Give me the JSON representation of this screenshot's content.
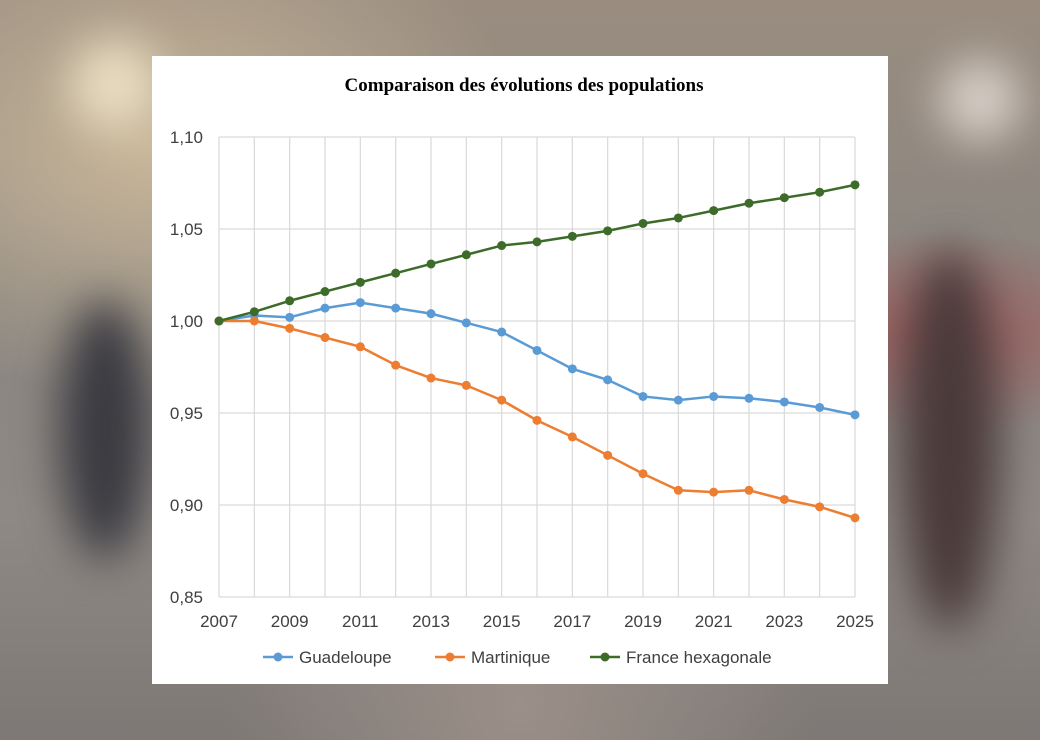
{
  "chart_data": {
    "type": "line",
    "title": "Comparaison des évolutions des populations",
    "xlabel": "",
    "ylabel": "",
    "x": [
      2007,
      2008,
      2009,
      2010,
      2011,
      2012,
      2013,
      2014,
      2015,
      2016,
      2017,
      2018,
      2019,
      2020,
      2021,
      2022,
      2023,
      2024,
      2025
    ],
    "xticks": [
      "2007",
      "2009",
      "2011",
      "2013",
      "2015",
      "2017",
      "2019",
      "2021",
      "2023",
      "2025"
    ],
    "yticks": [
      "1,10",
      "1,05",
      "1,00",
      "0,95",
      "0,90",
      "0,85"
    ],
    "ylim": [
      0.85,
      1.1
    ],
    "xlim": [
      2007,
      2025
    ],
    "grid": true,
    "legend_position": "bottom",
    "series": [
      {
        "name": "Guadeloupe",
        "color": "#5b9bd5",
        "values": [
          1.0,
          1.003,
          1.002,
          1.007,
          1.01,
          1.007,
          1.004,
          0.999,
          0.994,
          0.984,
          0.974,
          0.968,
          0.959,
          0.957,
          0.959,
          0.958,
          0.956,
          0.953,
          0.949
        ]
      },
      {
        "name": "Martinique",
        "color": "#ed7d31",
        "values": [
          1.0,
          1.0,
          0.996,
          0.991,
          0.986,
          0.976,
          0.969,
          0.965,
          0.957,
          0.946,
          0.937,
          0.927,
          0.917,
          0.908,
          0.907,
          0.908,
          0.903,
          0.899,
          0.893
        ]
      },
      {
        "name": "France hexagonale",
        "color": "#3d6b2a",
        "values": [
          1.0,
          1.005,
          1.011,
          1.016,
          1.021,
          1.026,
          1.031,
          1.036,
          1.041,
          1.043,
          1.046,
          1.049,
          1.053,
          1.056,
          1.06,
          1.064,
          1.067,
          1.07,
          1.074
        ]
      }
    ]
  }
}
